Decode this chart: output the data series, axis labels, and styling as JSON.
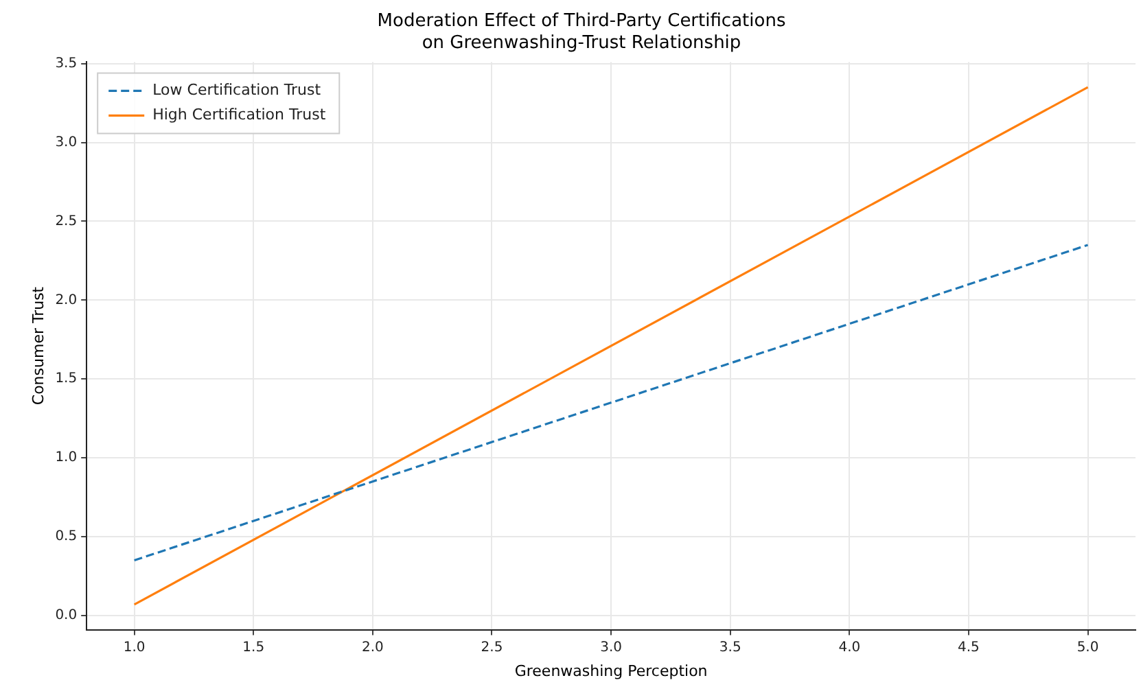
{
  "chart_data": {
    "type": "line",
    "title": "Moderation Effect of Third-Party Certifications\non Greenwashing-Trust Relationship",
    "xlabel": "Greenwashing Perception",
    "ylabel": "Consumer Trust",
    "x": [
      1,
      5
    ],
    "series": [
      {
        "name": "Low Certification Trust",
        "color": "#1f77b4",
        "values": [
          0.35,
          2.35
        ],
        "line_style": "dashed"
      },
      {
        "name": "High Certification Trust",
        "color": "#ff7f0e",
        "values": [
          0.07,
          3.35
        ],
        "line_style": "solid"
      }
    ],
    "xlim": [
      0.8,
      5.2
    ],
    "xticks": [
      {
        "value": 1,
        "label": "1.0"
      },
      {
        "value": 1.5,
        "label": "1.5"
      },
      {
        "value": 2,
        "label": "2.0"
      },
      {
        "value": 2.5,
        "label": "2.5"
      },
      {
        "value": 3,
        "label": "3.0"
      },
      {
        "value": 3.5,
        "label": "3.5"
      },
      {
        "value": 4,
        "label": "4.0"
      },
      {
        "value": 4.5,
        "label": "4.5"
      },
      {
        "value": 5,
        "label": "5.0"
      }
    ],
    "ylim": [
      -0.09,
      3.51
    ],
    "yticks": [
      {
        "value": 0,
        "label": "0.0"
      },
      {
        "value": 0.5,
        "label": "0.5"
      },
      {
        "value": 1,
        "label": "1.0"
      },
      {
        "value": 1.5,
        "label": "1.5"
      },
      {
        "value": 2,
        "label": "2.0"
      },
      {
        "value": 2.5,
        "label": "2.5"
      },
      {
        "value": 3,
        "label": "3.0"
      },
      {
        "value": 3.5,
        "label": "3.5"
      }
    ],
    "grid": true,
    "legend": "top left",
    "marker": "none"
  }
}
